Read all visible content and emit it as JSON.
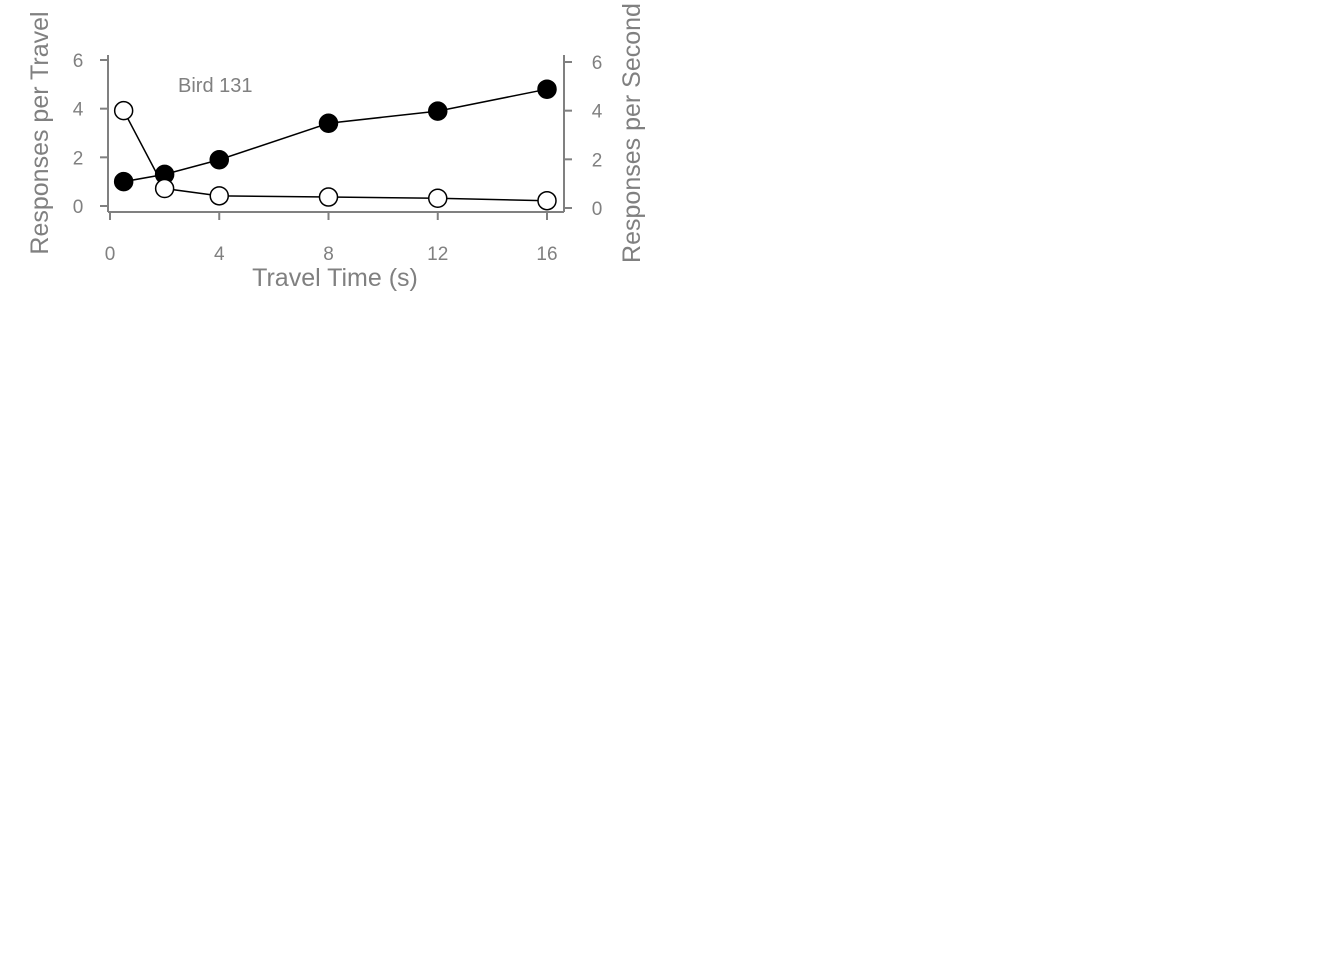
{
  "chart_data": {
    "type": "line",
    "annotation": "Bird 131",
    "xlabel": "Travel Time (s)",
    "ylabel_left": "Responses per Travel",
    "ylabel_right": "Responses per Second",
    "xlim": [
      0,
      16
    ],
    "ylim_left": [
      0,
      6
    ],
    "ylim_right": [
      0,
      6
    ],
    "x_ticks": [
      0,
      4,
      8,
      12,
      16
    ],
    "y_ticks_left": [
      0,
      2,
      4,
      6
    ],
    "y_ticks_right": [
      0,
      2,
      4,
      6
    ],
    "grid": false,
    "series": [
      {
        "marker": "filled-circle",
        "color": "#000000",
        "axis": "left",
        "x": [
          0.5,
          2,
          4,
          8,
          12,
          16
        ],
        "y": [
          1.0,
          1.3,
          1.9,
          3.4,
          3.9,
          4.8
        ]
      },
      {
        "marker": "open-circle",
        "color": "#ffffff",
        "axis": "right",
        "x": [
          0.5,
          2,
          4,
          8,
          12,
          16
        ],
        "y": [
          4.0,
          0.8,
          0.5,
          0.45,
          0.4,
          0.3
        ]
      }
    ]
  }
}
